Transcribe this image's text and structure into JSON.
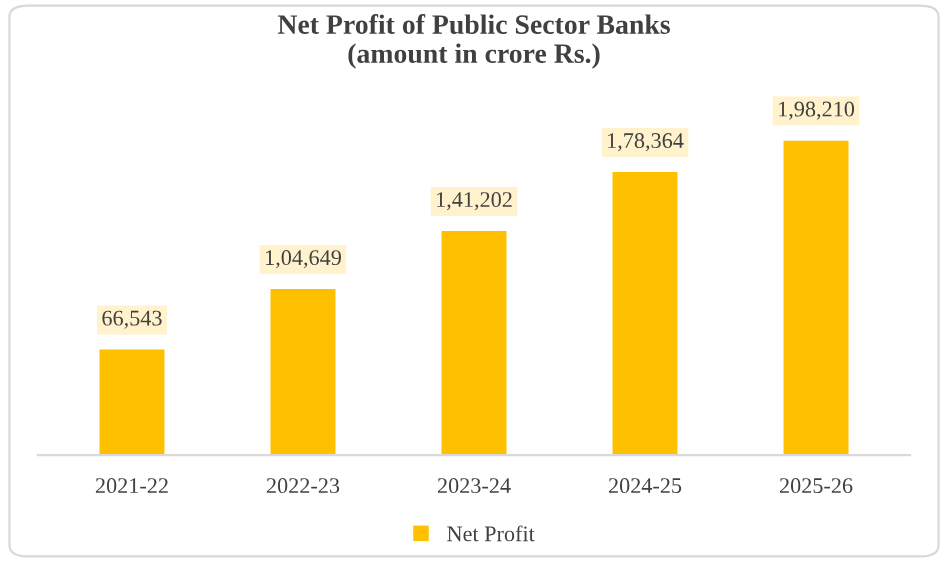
{
  "chart_data": {
    "type": "bar",
    "title": "Net Profit of Public Sector Banks\n(amount in crore Rs.)",
    "categories": [
      "2021-22",
      "2022-23",
      "2023-24",
      "2024-25",
      "2025-26"
    ],
    "series": [
      {
        "name": "Net Profit",
        "color": "#ffc000",
        "values": [
          66543,
          104649,
          141202,
          178364,
          198210
        ],
        "value_labels": [
          "66,543",
          "1,04,649",
          "1,41,202",
          "1,78,364",
          "1,98,210"
        ]
      }
    ],
    "legend": "bottom",
    "grid": false
  }
}
